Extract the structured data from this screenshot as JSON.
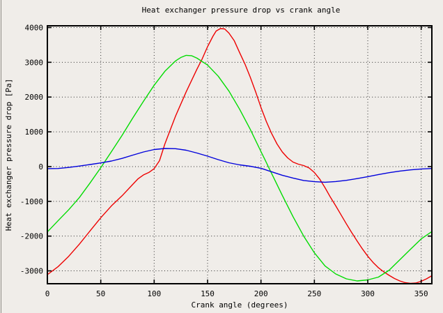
{
  "page": {
    "background": "#f0ede9",
    "foreground": "#000000"
  },
  "chart_data": {
    "type": "line",
    "title": "Heat exchanger pressure drop vs crank angle",
    "xlabel": "Crank angle (degrees)",
    "ylabel": "Heat exchanger pressure drop [Pa]",
    "xlim": [
      0,
      360
    ],
    "ylim": [
      -3370,
      4050
    ],
    "xticks": [
      0,
      50,
      100,
      150,
      200,
      250,
      300,
      350
    ],
    "yticks": [
      -3000,
      -2000,
      -1000,
      0,
      1000,
      2000,
      3000,
      4000
    ],
    "grid": "dotted",
    "legend": "none",
    "axis_color": "#000000",
    "grid_color": "#2a2a2a",
    "series": [
      {
        "name": "red",
        "color": "#ee0000",
        "points": [
          [
            0,
            -3110
          ],
          [
            10,
            -2880
          ],
          [
            20,
            -2580
          ],
          [
            30,
            -2230
          ],
          [
            40,
            -1850
          ],
          [
            50,
            -1470
          ],
          [
            60,
            -1130
          ],
          [
            70,
            -840
          ],
          [
            80,
            -510
          ],
          [
            85,
            -350
          ],
          [
            90,
            -240
          ],
          [
            95,
            -170
          ],
          [
            100,
            -60
          ],
          [
            105,
            170
          ],
          [
            110,
            650
          ],
          [
            115,
            1050
          ],
          [
            120,
            1450
          ],
          [
            130,
            2150
          ],
          [
            140,
            2800
          ],
          [
            145,
            3100
          ],
          [
            150,
            3450
          ],
          [
            155,
            3750
          ],
          [
            158,
            3900
          ],
          [
            162,
            3970
          ],
          [
            166,
            3960
          ],
          [
            170,
            3840
          ],
          [
            175,
            3620
          ],
          [
            180,
            3280
          ],
          [
            185,
            2950
          ],
          [
            190,
            2570
          ],
          [
            195,
            2150
          ],
          [
            200,
            1700
          ],
          [
            205,
            1300
          ],
          [
            210,
            950
          ],
          [
            215,
            650
          ],
          [
            220,
            420
          ],
          [
            225,
            250
          ],
          [
            230,
            130
          ],
          [
            235,
            70
          ],
          [
            240,
            30
          ],
          [
            245,
            -40
          ],
          [
            250,
            -170
          ],
          [
            255,
            -360
          ],
          [
            260,
            -610
          ],
          [
            265,
            -880
          ],
          [
            270,
            -1130
          ],
          [
            275,
            -1390
          ],
          [
            280,
            -1650
          ],
          [
            285,
            -1900
          ],
          [
            290,
            -2140
          ],
          [
            295,
            -2370
          ],
          [
            300,
            -2580
          ],
          [
            305,
            -2760
          ],
          [
            310,
            -2910
          ],
          [
            315,
            -3030
          ],
          [
            320,
            -3130
          ],
          [
            325,
            -3220
          ],
          [
            330,
            -3290
          ],
          [
            335,
            -3340
          ],
          [
            340,
            -3360
          ],
          [
            345,
            -3350
          ],
          [
            350,
            -3300
          ],
          [
            355,
            -3230
          ],
          [
            360,
            -3140
          ]
        ]
      },
      {
        "name": "green",
        "color": "#00dc00",
        "points": [
          [
            0,
            -1880
          ],
          [
            10,
            -1560
          ],
          [
            20,
            -1240
          ],
          [
            30,
            -890
          ],
          [
            40,
            -470
          ],
          [
            50,
            -30
          ],
          [
            60,
            430
          ],
          [
            70,
            900
          ],
          [
            80,
            1400
          ],
          [
            90,
            1880
          ],
          [
            100,
            2340
          ],
          [
            110,
            2740
          ],
          [
            120,
            3040
          ],
          [
            125,
            3140
          ],
          [
            130,
            3200
          ],
          [
            135,
            3190
          ],
          [
            140,
            3120
          ],
          [
            150,
            2920
          ],
          [
            160,
            2600
          ],
          [
            170,
            2170
          ],
          [
            180,
            1650
          ],
          [
            190,
            1070
          ],
          [
            200,
            430
          ],
          [
            205,
            120
          ],
          [
            210,
            -200
          ],
          [
            220,
            -830
          ],
          [
            230,
            -1440
          ],
          [
            240,
            -2000
          ],
          [
            250,
            -2480
          ],
          [
            260,
            -2860
          ],
          [
            270,
            -3090
          ],
          [
            280,
            -3230
          ],
          [
            290,
            -3290
          ],
          [
            300,
            -3260
          ],
          [
            310,
            -3180
          ],
          [
            320,
            -2980
          ],
          [
            330,
            -2680
          ],
          [
            340,
            -2380
          ],
          [
            350,
            -2080
          ],
          [
            360,
            -1870
          ]
        ]
      },
      {
        "name": "blue",
        "color": "#0000dc",
        "points": [
          [
            0,
            -60
          ],
          [
            10,
            -55
          ],
          [
            20,
            -25
          ],
          [
            30,
            15
          ],
          [
            40,
            60
          ],
          [
            50,
            105
          ],
          [
            60,
            160
          ],
          [
            70,
            235
          ],
          [
            80,
            330
          ],
          [
            90,
            420
          ],
          [
            100,
            490
          ],
          [
            110,
            520
          ],
          [
            120,
            515
          ],
          [
            130,
            470
          ],
          [
            140,
            390
          ],
          [
            150,
            300
          ],
          [
            160,
            200
          ],
          [
            170,
            110
          ],
          [
            180,
            50
          ],
          [
            190,
            10
          ],
          [
            200,
            -50
          ],
          [
            210,
            -150
          ],
          [
            220,
            -250
          ],
          [
            230,
            -330
          ],
          [
            240,
            -400
          ],
          [
            250,
            -435
          ],
          [
            260,
            -450
          ],
          [
            270,
            -430
          ],
          [
            280,
            -395
          ],
          [
            290,
            -345
          ],
          [
            300,
            -290
          ],
          [
            310,
            -230
          ],
          [
            320,
            -175
          ],
          [
            330,
            -130
          ],
          [
            340,
            -95
          ],
          [
            350,
            -70
          ],
          [
            360,
            -55
          ]
        ]
      }
    ]
  }
}
